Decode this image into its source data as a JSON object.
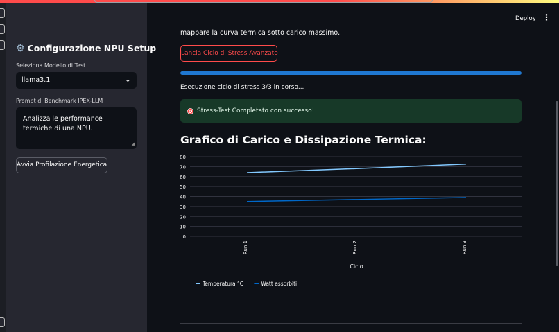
{
  "sidebar": {
    "title": "Configurazione NPU Setup",
    "model_label": "Seleziona Modello di Test",
    "model_value": "llama3.1",
    "prompt_label": "Prompt di Benchmark IPEX-LLM",
    "prompt_value": "Analizza le performance termiche di una NPU.",
    "button_label": "Avvia Profilazione Energetica"
  },
  "header": {
    "deploy_label": "Deploy"
  },
  "main": {
    "intro_text": "mappare la curva termica sotto carico massimo.",
    "stress_button_label": "Lancia Ciclo di Stress Avanzato",
    "progress": 1.0,
    "status_text": "Esecuzione ciclo di stress 3/3 in corso...",
    "success_text": "Stress-Test Completato con successo!",
    "chart_heading": "Grafico di Carico e Dissipazione Termica:"
  },
  "colors": {
    "accent": "#ff4b4b",
    "progress": "#1f78d1",
    "success_bg": "#173928",
    "series_temp": "#83c9ff",
    "series_watt": "#0068c9"
  },
  "chart_data": {
    "type": "line",
    "categories": [
      "Run 1",
      "Run 2",
      "Run 3"
    ],
    "series": [
      {
        "name": "Temperatura °C",
        "values": [
          64,
          68,
          72.5
        ]
      },
      {
        "name": "Watt assorbiti",
        "values": [
          35,
          37,
          39
        ]
      }
    ],
    "xlabel": "Ciclo",
    "ylabel": "",
    "yticks": [
      0,
      10,
      20,
      30,
      40,
      50,
      60,
      70,
      80
    ],
    "ylim": [
      0,
      80
    ],
    "grid": true,
    "legend": "bottom-left"
  }
}
